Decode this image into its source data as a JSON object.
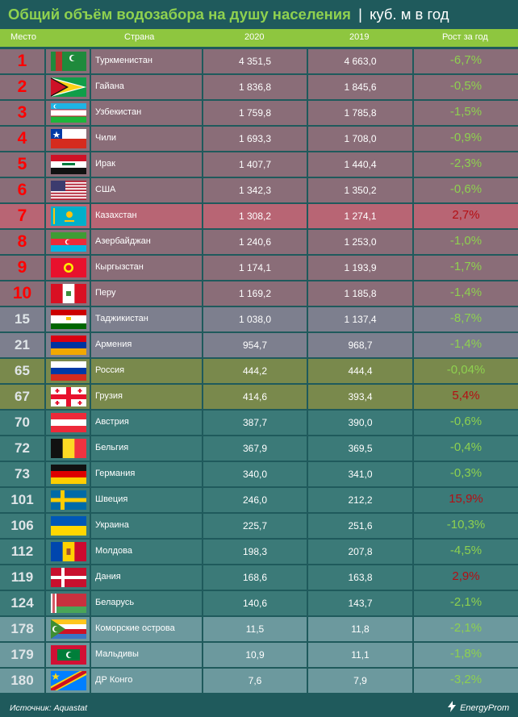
{
  "title": {
    "main": "Общий объём водозабора на душу населения",
    "separator": "|",
    "unit": "куб. м в год"
  },
  "headers": {
    "rank": "Место",
    "country": "Страна",
    "y2020": "2020",
    "y2019": "2019",
    "growth": "Рост за год"
  },
  "colors": {
    "top": "#8a6d78",
    "kz": "#b86574",
    "central_asia": "#7d7f8e",
    "ru_ge": "#79894c",
    "europe": "#3b7a78",
    "islands": "#6c999e",
    "rank_red": "#ff0000",
    "rank_light": "#dfe5e8",
    "growth_green": "#8ed14f",
    "growth_red": "#b40f14",
    "header_green": "#8ec63f",
    "title_green": "#8fd14f"
  },
  "chart_data": {
    "type": "table",
    "columns": [
      "Место",
      "Страна",
      "2020",
      "2019",
      "Рост за год"
    ],
    "rows": [
      {
        "rank": "1",
        "country": "Туркменистан",
        "v2020": "4 351,5",
        "v2019": "4 663,0",
        "growth": "-6,7%",
        "flag": "turkmenistan-flag"
      },
      {
        "rank": "2",
        "country": "Гайана",
        "v2020": "1 836,8",
        "v2019": "1 845,6",
        "growth": "-0,5%",
        "flag": "guyana-flag"
      },
      {
        "rank": "3",
        "country": "Узбекистан",
        "v2020": "1 759,8",
        "v2019": "1 785,8",
        "growth": "-1,5%",
        "flag": "uzbekistan-flag"
      },
      {
        "rank": "4",
        "country": "Чили",
        "v2020": "1 693,3",
        "v2019": "1 708,0",
        "growth": "-0,9%",
        "flag": "chile-flag"
      },
      {
        "rank": "5",
        "country": "Ирак",
        "v2020": "1 407,7",
        "v2019": "1 440,4",
        "growth": "-2,3%",
        "flag": "iraq-flag"
      },
      {
        "rank": "6",
        "country": "США",
        "v2020": "1 342,3",
        "v2019": "1 350,2",
        "growth": "-0,6%",
        "flag": "usa-flag"
      },
      {
        "rank": "7",
        "country": "Казахстан",
        "v2020": "1 308,2",
        "v2019": "1 274,1",
        "growth": "2,7%",
        "flag": "kazakhstan-flag"
      },
      {
        "rank": "8",
        "country": "Азербайджан",
        "v2020": "1 240,6",
        "v2019": "1 253,0",
        "growth": "-1,0%",
        "flag": "azerbaijan-flag"
      },
      {
        "rank": "9",
        "country": "Кыргызстан",
        "v2020": "1 174,1",
        "v2019": "1 193,9",
        "growth": "-1,7%",
        "flag": "kyrgyzstan-flag"
      },
      {
        "rank": "10",
        "country": "Перу",
        "v2020": "1 169,2",
        "v2019": "1 185,8",
        "growth": "-1,4%",
        "flag": "peru-flag"
      },
      {
        "rank": "15",
        "country": "Таджикистан",
        "v2020": "1 038,0",
        "v2019": "1 137,4",
        "growth": "-8,7%",
        "flag": "tajikistan-flag"
      },
      {
        "rank": "21",
        "country": "Армения",
        "v2020": "954,7",
        "v2019": "968,7",
        "growth": "-1,4%",
        "flag": "armenia-flag"
      },
      {
        "rank": "65",
        "country": "Россия",
        "v2020": "444,2",
        "v2019": "444,4",
        "growth": "-0,04%",
        "flag": "russia-flag"
      },
      {
        "rank": "67",
        "country": "Грузия",
        "v2020": "414,6",
        "v2019": "393,4",
        "growth": "5,4%",
        "flag": "georgia-flag"
      },
      {
        "rank": "70",
        "country": "Австрия",
        "v2020": "387,7",
        "v2019": "390,0",
        "growth": "-0,6%",
        "flag": "austria-flag"
      },
      {
        "rank": "72",
        "country": "Бельгия",
        "v2020": "367,9",
        "v2019": "369,5",
        "growth": "-0,4%",
        "flag": "belgium-flag"
      },
      {
        "rank": "73",
        "country": "Германия",
        "v2020": "340,0",
        "v2019": "341,0",
        "growth": "-0,3%",
        "flag": "germany-flag"
      },
      {
        "rank": "101",
        "country": "Швеция",
        "v2020": "246,0",
        "v2019": "212,2",
        "growth": "15,9%",
        "flag": "sweden-flag"
      },
      {
        "rank": "106",
        "country": "Украина",
        "v2020": "225,7",
        "v2019": "251,6",
        "growth": "-10,3%",
        "flag": "ukraine-flag"
      },
      {
        "rank": "112",
        "country": "Молдова",
        "v2020": "198,3",
        "v2019": "207,8",
        "growth": "-4,5%",
        "flag": "moldova-flag"
      },
      {
        "rank": "119",
        "country": "Дания",
        "v2020": "168,6",
        "v2019": "163,8",
        "growth": "2,9%",
        "flag": "denmark-flag"
      },
      {
        "rank": "124",
        "country": "Беларусь",
        "v2020": "140,6",
        "v2019": "143,7",
        "growth": "-2,1%",
        "flag": "belarus-flag"
      },
      {
        "rank": "178",
        "country": "Коморские острова",
        "v2020": "11,5",
        "v2019": "11,8",
        "growth": "-2,1%",
        "flag": "comoros-flag"
      },
      {
        "rank": "179",
        "country": "Мальдивы",
        "v2020": "10,9",
        "v2019": "11,1",
        "growth": "-1,8%",
        "flag": "maldives-flag"
      },
      {
        "rank": "180",
        "country": "ДР Конго",
        "v2020": "7,6",
        "v2019": "7,9",
        "growth": "-3,2%",
        "flag": "dr-congo-flag"
      }
    ]
  },
  "footer": {
    "source": "Источник: Aquastat",
    "logo_text": "EnergyProm"
  }
}
